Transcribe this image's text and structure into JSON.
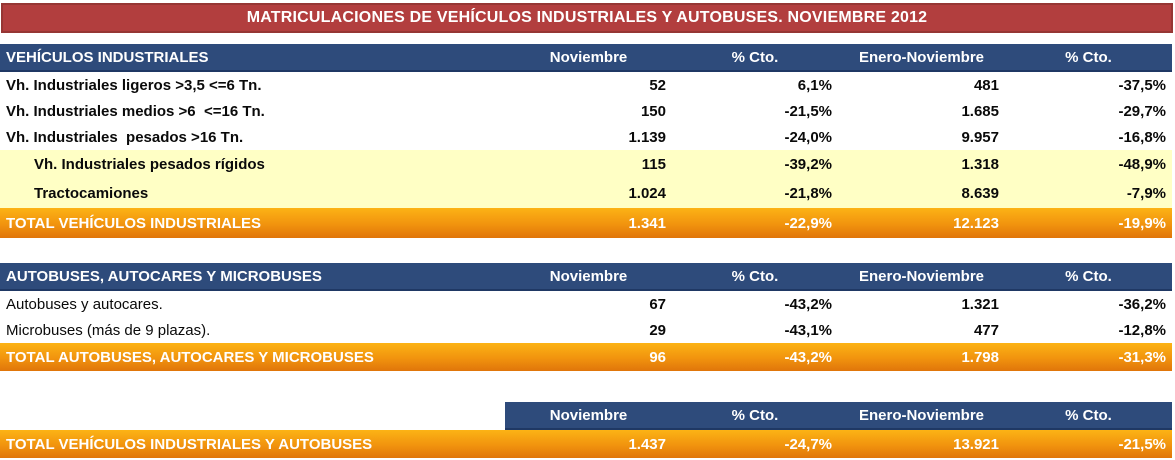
{
  "title": "MATRICULACIONES DE VEHÍCULOS INDUSTRIALES Y AUTOBUSES. NOVIEMBRE 2012",
  "columns": [
    "Noviembre",
    "% Cto.",
    "Enero-Noviembre",
    "% Cto."
  ],
  "tables": [
    {
      "header_label": "VEHÍCULOS INDUSTRIALES",
      "rows": [
        {
          "label": "Vh. Industriales ligeros >3,5 <=6 Tn.",
          "values": [
            "52",
            "6,1%",
            "481",
            "-37,5%"
          ]
        },
        {
          "label": "Vh. Industriales medios >6  <=16 Tn.",
          "values": [
            "150",
            "-21,5%",
            "1.685",
            "-29,7%"
          ]
        },
        {
          "label": "Vh. Industriales  pesados >16 Tn.",
          "values": [
            "1.139",
            "-24,0%",
            "9.957",
            "-16,8%"
          ]
        },
        {
          "label": "Vh. Industriales pesados rígidos",
          "values": [
            "115",
            "-39,2%",
            "1.318",
            "-48,9%"
          ],
          "highlight": true
        },
        {
          "label": "Tractocamiones",
          "values": [
            "1.024",
            "-21,8%",
            "8.639",
            "-7,9%"
          ],
          "highlight": true
        }
      ],
      "total": {
        "label": "TOTAL VEHÍCULOS INDUSTRIALES",
        "values": [
          "1.341",
          "-22,9%",
          "12.123",
          "-19,9%"
        ]
      }
    },
    {
      "header_label": "AUTOBUSES, AUTOCARES Y MICROBUSES",
      "rows": [
        {
          "label": "Autobuses y autocares.",
          "values": [
            "67",
            "-43,2%",
            "1.321",
            "-36,2%"
          ]
        },
        {
          "label": "Microbuses (más de 9 plazas).",
          "values": [
            "29",
            "-43,1%",
            "477",
            "-12,8%"
          ]
        }
      ],
      "total": {
        "label": "TOTAL AUTOBUSES, AUTOCARES Y MICROBUSES",
        "values": [
          "96",
          "-43,2%",
          "1.798",
          "-31,3%"
        ]
      }
    },
    {
      "header_label": "",
      "rows": [],
      "total": {
        "label": "TOTAL VEHÍCULOS INDUSTRIALES Y AUTOBUSES",
        "values": [
          "1.437",
          "-24,7%",
          "13.921",
          "-21,5%"
        ]
      }
    }
  ],
  "colors": {
    "title_bg": "#B23E3E",
    "title_border": "#963634",
    "header_bg": "#2E4B7B",
    "header_border": "#1F3864",
    "highlight_bg": "#FFFFC5",
    "total_top": "#FCB315",
    "total_bottom": "#E0750A"
  }
}
